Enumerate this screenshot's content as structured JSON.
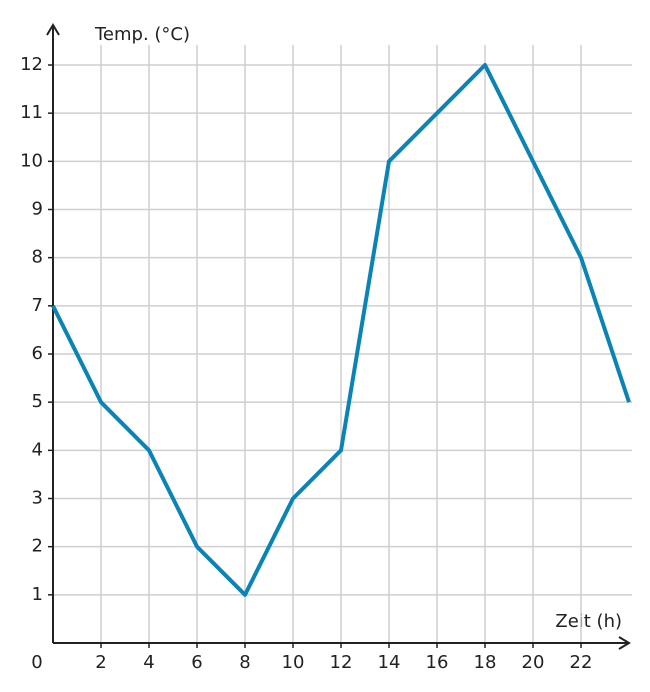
{
  "chart_data": {
    "type": "line",
    "y_label": "Temp. (°C)",
    "x_label": "Zeit (h)",
    "x": [
      0,
      2,
      4,
      6,
      8,
      10,
      12,
      14,
      16,
      18,
      20,
      22,
      24
    ],
    "series": [
      {
        "name": "Temperatur",
        "color": "#0a84b4",
        "values": [
          7,
          5,
          4,
          2,
          1,
          3,
          4,
          10,
          11,
          12,
          10,
          8,
          5
        ]
      }
    ],
    "xlim": [
      0,
      24
    ],
    "ylim": [
      0,
      12
    ],
    "xticks": [
      0,
      2,
      4,
      6,
      8,
      10,
      12,
      14,
      16,
      18,
      20,
      22
    ],
    "yticks": [
      1,
      2,
      3,
      4,
      5,
      6,
      7,
      8,
      9,
      10,
      11,
      12
    ],
    "grid": true
  }
}
